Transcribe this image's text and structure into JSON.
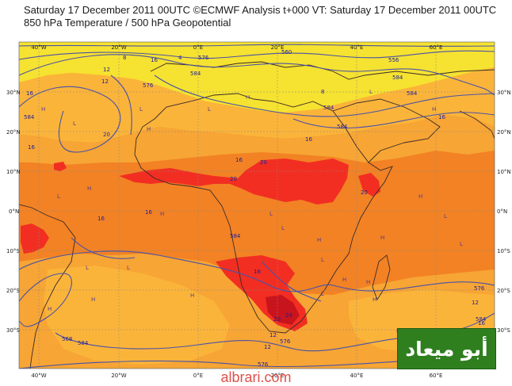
{
  "header": {
    "line1": "Saturday 17 December 2011 00UTC ©ECMWF Analysis t+000 VT: Saturday 17 December 2011 00UTC",
    "line2": "850 hPa Temperature / 500 hPa Geopotential"
  },
  "map": {
    "lon_ticks": [
      "40°W",
      "20°W",
      "0°E",
      "20°E",
      "40°E",
      "60°E"
    ],
    "lat_ticks": [
      "30°N",
      "20°N",
      "10°N",
      "0°N",
      "10°S",
      "20°S",
      "30°S"
    ],
    "colors": {
      "frame": "#c8c8c8",
      "temp_yellow": "#f6e230",
      "temp_light": "#fbb43a",
      "temp_mid": "#f7a534",
      "temp_base": "#f28224",
      "temp_red": "#f22e22",
      "temp_deep": "#c8141c",
      "contour": "#4a52a8",
      "coast": "#3a2a2a",
      "grid": "#888888"
    },
    "contour_labels": [
      "8",
      "12",
      "16",
      "4",
      "576",
      "584",
      "560",
      "556",
      "12",
      "8",
      "16",
      "584",
      "16",
      "20",
      "20",
      "20",
      "16",
      "16",
      "16",
      "16",
      "20",
      "576",
      "16",
      "584",
      "16",
      "584",
      "584",
      "584",
      "576",
      "584",
      "568",
      "20",
      "24",
      "576",
      "584",
      "12",
      "12",
      "16",
      "584",
      "12",
      "576"
    ],
    "hl_markers": [
      "L",
      "H",
      "L",
      "H",
      "H",
      "L",
      "H",
      "L",
      "L",
      "H",
      "H",
      "L",
      "L",
      "H",
      "L",
      "H",
      "H",
      "L",
      "H",
      "H",
      "L",
      "H",
      "L",
      "L",
      "H",
      "H",
      "H",
      "L",
      "H"
    ]
  },
  "logo": {
    "text": "أبو ميعاد"
  },
  "watermark": {
    "text": "albrari.com"
  }
}
